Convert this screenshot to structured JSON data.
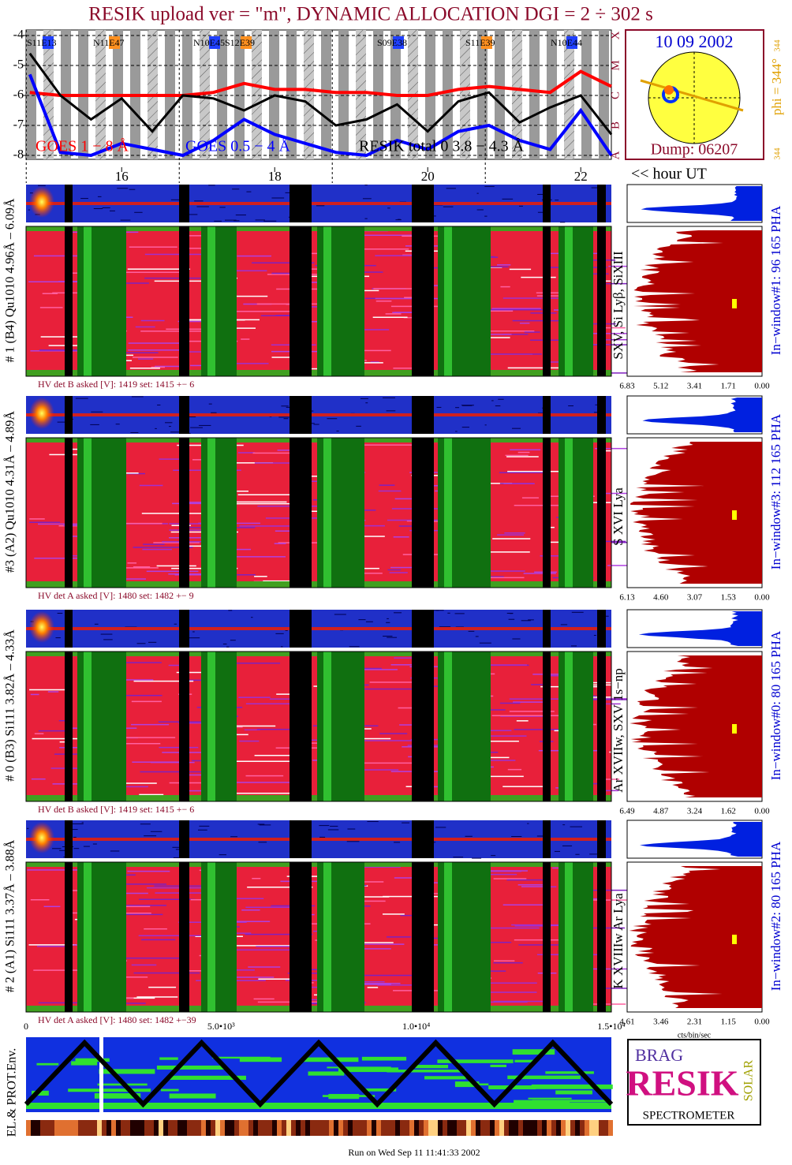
{
  "title": "RESIK upload ver = \"m\", DYNAMIC ALLOCATION  DGI =   2 ÷ 302 s",
  "chart_data": {
    "type": "line",
    "x": [
      14.8,
      15.2,
      15.6,
      16.0,
      16.4,
      16.8,
      17.2,
      17.6,
      18.0,
      18.4,
      18.8,
      19.2,
      19.6,
      20.0,
      20.4,
      20.8,
      21.2,
      21.6,
      22.0,
      22.4
    ],
    "series": [
      {
        "name": "GOES 1 − 8 Å",
        "color": "#ff0000",
        "values": [
          -5.9,
          -6.0,
          -6.0,
          -6.0,
          -6.0,
          -6.0,
          -5.9,
          -5.6,
          -5.8,
          -5.8,
          -5.9,
          -5.9,
          -6.0,
          -6.0,
          -5.8,
          -5.7,
          -5.8,
          -5.9,
          -5.2,
          -5.7
        ]
      },
      {
        "name": "GOES 0.5 − 4 Å",
        "color": "#0000ff",
        "values": [
          -5.3,
          -7.9,
          -8.0,
          -7.6,
          -7.8,
          -8.0,
          -7.5,
          -6.8,
          -7.3,
          -7.6,
          -7.9,
          -8.0,
          -7.5,
          -7.8,
          -7.2,
          -7.0,
          -7.5,
          -7.8,
          -6.5,
          -8.0
        ]
      },
      {
        "name": "RESIK total 0  3.8 − 4.3 Å",
        "color": "#000000",
        "values": [
          -4.6,
          -6.0,
          -6.8,
          -6.1,
          -7.2,
          -6.0,
          -6.1,
          -6.5,
          -6.0,
          -6.2,
          -7.0,
          -6.8,
          -6.3,
          -7.2,
          -6.2,
          -5.9,
          -6.9,
          -6.4,
          -6.0,
          -7.3
        ]
      }
    ],
    "xlim": [
      14.75,
      22.4
    ],
    "xticks": [
      16,
      18,
      20,
      22
    ],
    "xlabel": "<< hour UT",
    "ylim": [
      -8,
      -4
    ],
    "yticks": [
      -4,
      -5,
      -6,
      -7,
      -8
    ],
    "grid": true,
    "class_labels": [
      "X",
      "M",
      "C",
      "B",
      "A"
    ],
    "flare_labels": [
      "S11E13",
      "N11E47",
      "N10E45",
      "S12E39",
      "S09E38",
      "S11E39",
      "N10E44"
    ]
  },
  "sun": {
    "date": "10 09 2002",
    "phi": "phi = 344°",
    "phi_small": [
      "344",
      "344"
    ],
    "dump": "Dump: 06207"
  },
  "detectors": [
    {
      "label": "# 1 (B4) Qu1010 4.96Å – 6.09Å",
      "hv": "HV det B asked [V]:  1419 set:  1415 +−   6",
      "lines": "SXV, Si Lyβ, SiXIII",
      "window": "In−window#1:   96 165  PHA",
      "pha_ticks": [
        "6.83",
        "5.12",
        "3.41",
        "1.71",
        "0.00"
      ]
    },
    {
      "label": "#3 (A2) Qu1010 4.31Å – 4.89Å",
      "hv": "HV det A asked [V]:  1480 set:  1482 +−   9",
      "lines": "S XVI Lya",
      "window": "In−window#3:   112 165  PHA",
      "pha_ticks": [
        "6.13",
        "4.60",
        "3.07",
        "1.53",
        "0.00"
      ]
    },
    {
      "label": "# 0 (B3) Si111  3.82Å – 4.33Å",
      "hv": "HV det B asked [V]:  1419 set:  1415 +−   6",
      "lines": "Ar XVIIw, SXV 1s−np",
      "window": "In−window#0:   80 165  PHA",
      "pha_ticks": [
        "6.49",
        "4.87",
        "3.24",
        "1.62",
        "0.00"
      ]
    },
    {
      "label": "# 2 (A1) Si111  3.37Å – 3.88Å",
      "hv": "HV det A asked [V]:  1480 set:  1482 +−39",
      "lines": "K XVIIIw  Ar Lya",
      "window": "In−window#2:   80 165  PHA",
      "pha_ticks": [
        "4.61",
        "3.46",
        "2.31",
        "1.15",
        "0.00"
      ]
    }
  ],
  "pha_unit": "cts/bin/sec",
  "sample_axis": {
    "ticks": [
      "0",
      "5.0•10³",
      "1.0•10⁴",
      "1.5•10⁴"
    ]
  },
  "particles": {
    "label": "EL.& PROT.Env."
  },
  "logo": {
    "top": "BRAG",
    "name": "RESIK",
    "side": "SOLAR",
    "bottom": "SPECTROMETER"
  },
  "footer": "Run on Wed Sep 11 11:41:33 2002"
}
